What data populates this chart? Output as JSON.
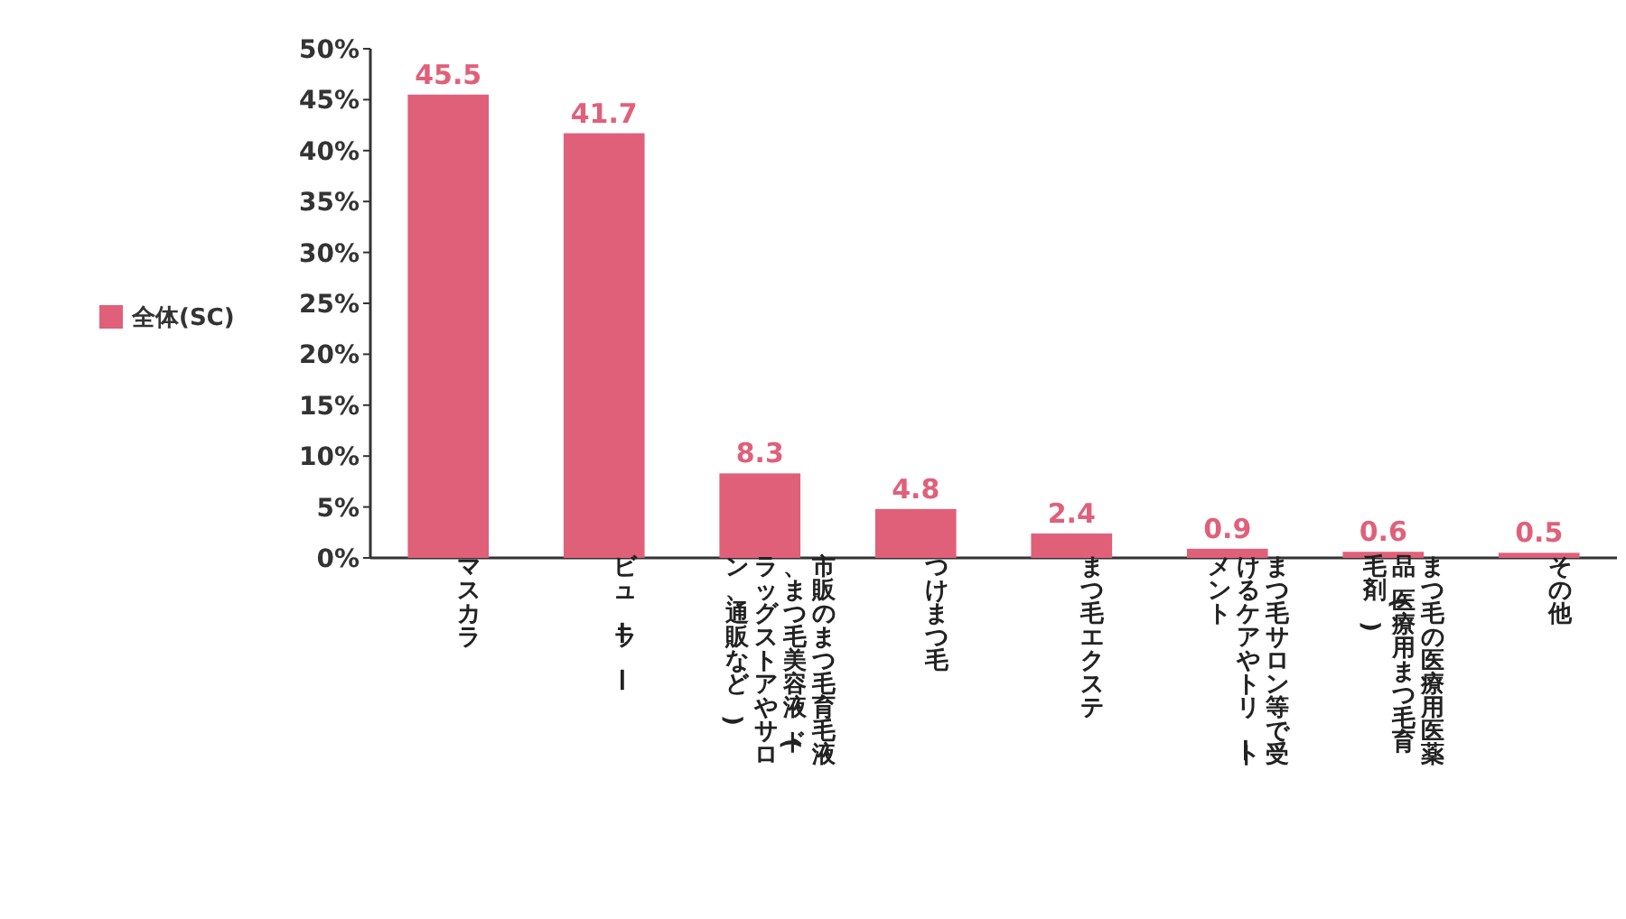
{
  "chart_data": {
    "type": "bar",
    "categories": [
      "マスカラ",
      "ビューラー",
      "市販のまつ毛育毛液、まつ毛美容液(ドラッグストアやサロン、通販など)",
      "つけまつ毛",
      "まつ毛エクステ",
      "まつ毛サロン等で受けるケアやトリートメント",
      "まつ毛の医療用医薬品(医療用まつ毛育毛剤)",
      "その他"
    ],
    "series": [
      {
        "name": "全体(SC)",
        "color": "#e0607a",
        "values": [
          45.5,
          41.7,
          8.3,
          4.8,
          2.4,
          0.9,
          0.6,
          0.5
        ]
      }
    ],
    "ylim": [
      0,
      50
    ],
    "yticks": [
      {
        "value": 0,
        "label": "0%"
      },
      {
        "value": 5,
        "label": "5%"
      },
      {
        "value": 10,
        "label": "10%"
      },
      {
        "value": 15,
        "label": "15%"
      },
      {
        "value": 20,
        "label": "20%"
      },
      {
        "value": 25,
        "label": "25%"
      },
      {
        "value": 30,
        "label": "30%"
      },
      {
        "value": 35,
        "label": "35%"
      },
      {
        "value": 40,
        "label": "40%"
      },
      {
        "value": 45,
        "label": "45%"
      },
      {
        "value": 50,
        "label": "50%"
      }
    ],
    "data_labels": true,
    "legend": "left",
    "grid": false
  }
}
